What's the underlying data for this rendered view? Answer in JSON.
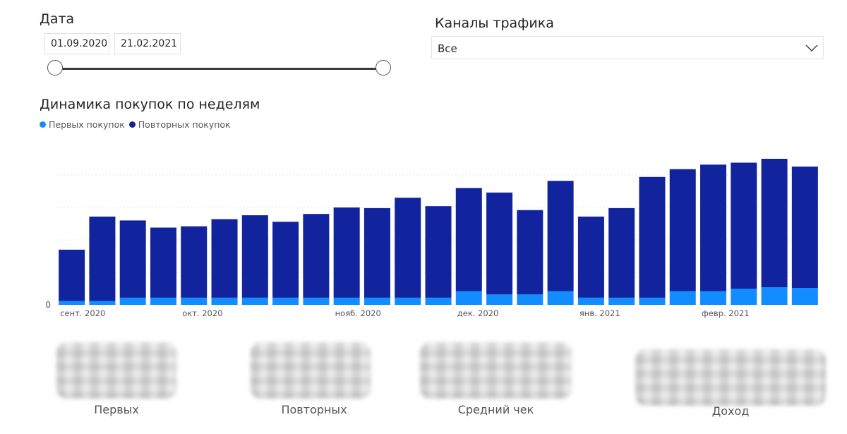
{
  "filters": {
    "date_label": "Дата",
    "date_from": "01.09.2020",
    "date_to": "21.02.2021",
    "channels_label": "Каналы трафика",
    "channels_value": "Все"
  },
  "colors": {
    "first": "#118dff",
    "repeat": "#12239e",
    "grid": "#e6e6e6"
  },
  "chart_data": {
    "type": "bar",
    "stacked": true,
    "title": "Динамика покупок по неделям",
    "legend_position": "top-left",
    "grid": true,
    "ylim": [
      0,
      250
    ],
    "y_tick_labels": [
      "0"
    ],
    "x_labels": [
      "сент. 2020",
      "окт. 2020",
      "нояб. 2020",
      "дек. 2020",
      "янв. 2021",
      "февр. 2021"
    ],
    "x_label_bar_index": [
      0,
      4,
      9,
      13,
      17,
      21
    ],
    "series": [
      {
        "name": "Первых покупок",
        "values": [
          6,
          6,
          11,
          11,
          11,
          11,
          11,
          11,
          11,
          11,
          11,
          11,
          11,
          21,
          16,
          16,
          21,
          11,
          11,
          11,
          21,
          21,
          25,
          27,
          26
        ]
      },
      {
        "name": "Повторных покупок",
        "values": [
          79,
          130,
          119,
          108,
          110,
          121,
          127,
          117,
          129,
          139,
          138,
          154,
          141,
          159,
          157,
          130,
          170,
          125,
          138,
          186,
          188,
          195,
          194,
          198,
          187
        ]
      }
    ]
  },
  "kpis": [
    {
      "label": "Первых"
    },
    {
      "label": "Повторных"
    },
    {
      "label": "Средний чек"
    },
    {
      "label": "Доход"
    }
  ]
}
